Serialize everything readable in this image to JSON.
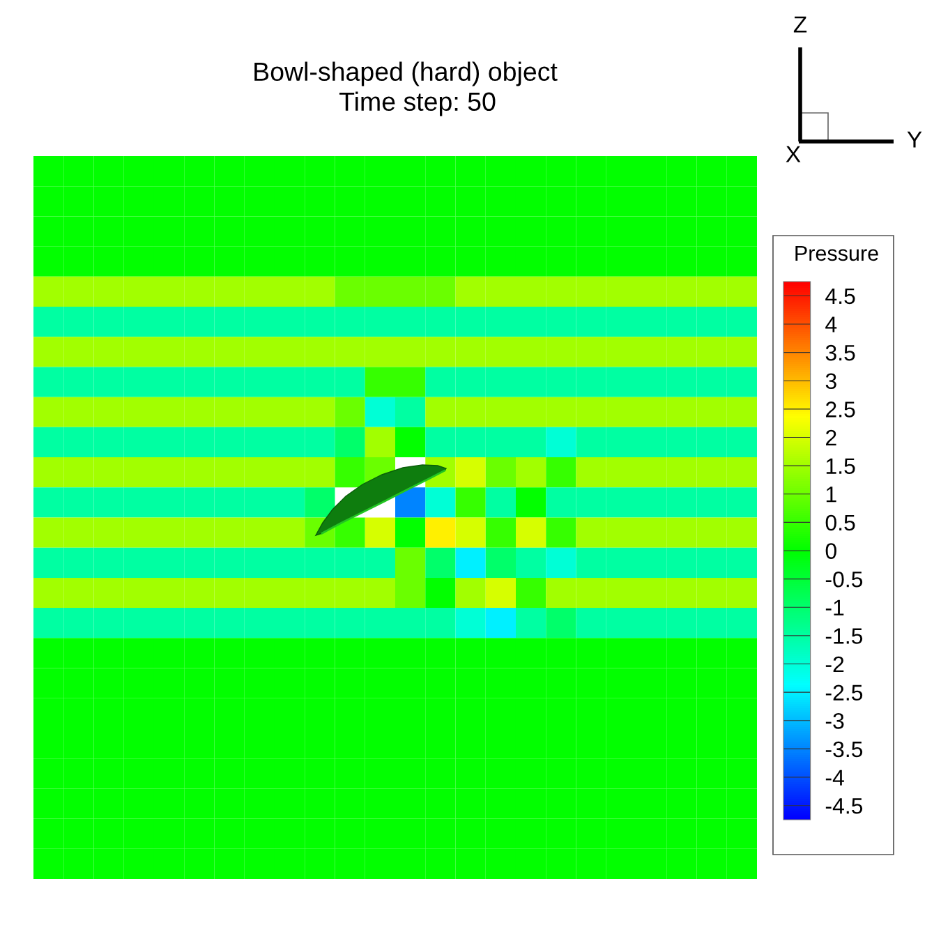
{
  "chart_data": {
    "type": "heatmap",
    "title": "Bowl-shaped (hard) object",
    "subtitle": "Time step: 50",
    "clabel": "Pressure",
    "annotations": [
      "Z",
      "Y",
      "X"
    ],
    "categories": [
      null,
      null,
      null,
      null,
      null,
      null,
      null,
      null,
      null,
      null,
      null,
      null,
      null,
      null,
      null,
      null,
      null,
      null,
      null,
      null,
      null,
      null,
      null,
      null
    ],
    "y_categories": [
      null,
      null,
      null,
      null,
      null,
      null,
      null,
      null,
      null,
      null,
      null,
      null,
      null,
      null,
      null,
      null,
      null,
      null,
      null,
      null,
      null,
      null,
      null,
      null
    ],
    "cells": [
      [
        0,
        0,
        0,
        0,
        0,
        0,
        0,
        0,
        0,
        0,
        0,
        0,
        0,
        0,
        0,
        0,
        0,
        0,
        0,
        0,
        0,
        0,
        0,
        0
      ],
      [
        0,
        0,
        0,
        0,
        0,
        0,
        0,
        0,
        0,
        0,
        0,
        0,
        0,
        0,
        0,
        0,
        0,
        0,
        0,
        0,
        0,
        0,
        0,
        0
      ],
      [
        0,
        0,
        0,
        0,
        0,
        0,
        0,
        0,
        0,
        0,
        0,
        0,
        0,
        0,
        0,
        0,
        0,
        0,
        0,
        0,
        0,
        0,
        0,
        0
      ],
      [
        0,
        0,
        0,
        0,
        0,
        0,
        0,
        0,
        0,
        0,
        0,
        0,
        0,
        0,
        0,
        0,
        0,
        0,
        0,
        0,
        0,
        0,
        0,
        0
      ],
      [
        1.5,
        1.5,
        1.5,
        1.5,
        1.5,
        1.5,
        1.5,
        1.5,
        1.5,
        1.5,
        1,
        1,
        1,
        1,
        1.5,
        1.5,
        1.5,
        1.5,
        1.5,
        1.5,
        1.5,
        1.5,
        1.5,
        1.5
      ],
      [
        -1.5,
        -1.5,
        -1.5,
        -1.5,
        -1.5,
        -1.5,
        -1.5,
        -1.5,
        -1.5,
        -1.5,
        -1.5,
        -1.5,
        -1.5,
        -1.5,
        -1.5,
        -1.5,
        -1.5,
        -1.5,
        -1.5,
        -1.5,
        -1.5,
        -1.5,
        -1.5,
        -1.5
      ],
      [
        1.5,
        1.5,
        1.5,
        1.5,
        1.5,
        1.5,
        1.5,
        1.5,
        1.5,
        1.5,
        1.5,
        1.5,
        1.5,
        1.5,
        1.5,
        1.5,
        1.5,
        1.5,
        1.5,
        1.5,
        1.5,
        1.5,
        1.5,
        1.5
      ],
      [
        -1.5,
        -1.5,
        -1.5,
        -1.5,
        -1.5,
        -1.5,
        -1.5,
        -1.5,
        -1.5,
        -1.5,
        -1.5,
        0.5,
        0.5,
        -1.5,
        -1.5,
        -1.5,
        -1.5,
        -1.5,
        -1.5,
        -1.5,
        -1.5,
        -1.5,
        -1.5,
        -1.5
      ],
      [
        1.5,
        1.5,
        1.5,
        1.5,
        1.5,
        1.5,
        1.5,
        1.5,
        1.5,
        1.5,
        1,
        -2,
        -1.5,
        1.5,
        1.5,
        1.5,
        1.5,
        1.5,
        1.5,
        1.5,
        1.5,
        1.5,
        1.5,
        1.5
      ],
      [
        -1.5,
        -1.5,
        -1.5,
        -1.5,
        -1.5,
        -1.5,
        -1.5,
        -1.5,
        -1.5,
        -1.5,
        -1,
        1.5,
        0,
        -1.5,
        -1.5,
        -1.5,
        -1.5,
        -2,
        -1.5,
        -1.5,
        -1.5,
        -1.5,
        -1.5,
        -1.5
      ],
      [
        1.5,
        1.5,
        1.5,
        1.5,
        1.5,
        1.5,
        1.5,
        1.5,
        1.5,
        1.5,
        0.5,
        1,
        null,
        1.5,
        2,
        1,
        1.5,
        0.5,
        1.5,
        1.5,
        1.5,
        1.5,
        1.5,
        1.5
      ],
      [
        -1.5,
        -1.5,
        -1.5,
        -1.5,
        -1.5,
        -1.5,
        -1.5,
        -1.5,
        -1.5,
        -1,
        null,
        null,
        -3.5,
        -2,
        0.5,
        -1.5,
        0,
        -1.5,
        -1.5,
        -1.5,
        -1.5,
        -1.5,
        -1.5,
        -1.5
      ],
      [
        1.5,
        1.5,
        1.5,
        1.5,
        1.5,
        1.5,
        1.5,
        1.5,
        1.5,
        1,
        0.5,
        2,
        0,
        2.5,
        2,
        0.5,
        2,
        0.5,
        1.5,
        1.5,
        1.5,
        1.5,
        1.5,
        1.5
      ],
      [
        -1.5,
        -1.5,
        -1.5,
        -1.5,
        -1.5,
        -1.5,
        -1.5,
        -1.5,
        -1.5,
        -1.5,
        -1.5,
        -1.5,
        1,
        -1,
        -2.5,
        -1,
        -1.5,
        -2,
        -1.5,
        -1.5,
        -1.5,
        -1.5,
        -1.5,
        -1.5
      ],
      [
        1.5,
        1.5,
        1.5,
        1.5,
        1.5,
        1.5,
        1.5,
        1.5,
        1.5,
        1.5,
        1.5,
        1.5,
        1,
        0,
        1.5,
        2,
        0.5,
        1.5,
        1.5,
        1.5,
        1.5,
        1.5,
        1.5,
        1.5
      ],
      [
        -1.5,
        -1.5,
        -1.5,
        -1.5,
        -1.5,
        -1.5,
        -1.5,
        -1.5,
        -1.5,
        -1.5,
        -1.5,
        -1.5,
        -1.5,
        -1.5,
        -2,
        -2.5,
        -1.5,
        -1,
        -1.5,
        -1.5,
        -1.5,
        -1.5,
        -1.5,
        -1.5
      ],
      [
        0,
        0,
        0,
        0,
        0,
        0,
        0,
        0,
        0,
        0,
        0,
        0,
        0,
        0,
        0,
        0,
        0,
        0,
        0,
        0,
        0,
        0,
        0,
        0
      ],
      [
        0,
        0,
        0,
        0,
        0,
        0,
        0,
        0,
        0,
        0,
        0,
        0,
        0,
        0,
        0,
        0,
        0,
        0,
        0,
        0,
        0,
        0,
        0,
        0
      ],
      [
        0,
        0,
        0,
        0,
        0,
        0,
        0,
        0,
        0,
        0,
        0,
        0,
        0,
        0,
        0,
        0,
        0,
        0,
        0,
        0,
        0,
        0,
        0,
        0
      ],
      [
        0,
        0,
        0,
        0,
        0,
        0,
        0,
        0,
        0,
        0,
        0,
        0,
        0,
        0,
        0,
        0,
        0,
        0,
        0,
        0,
        0,
        0,
        0,
        0
      ],
      [
        0,
        0,
        0,
        0,
        0,
        0,
        0,
        0,
        0,
        0,
        0,
        0,
        0,
        0,
        0,
        0,
        0,
        0,
        0,
        0,
        0,
        0,
        0,
        0
      ],
      [
        0,
        0,
        0,
        0,
        0,
        0,
        0,
        0,
        0,
        0,
        0,
        0,
        0,
        0,
        0,
        0,
        0,
        0,
        0,
        0,
        0,
        0,
        0,
        0
      ],
      [
        0,
        0,
        0,
        0,
        0,
        0,
        0,
        0,
        0,
        0,
        0,
        0,
        0,
        0,
        0,
        0,
        0,
        0,
        0,
        0,
        0,
        0,
        0,
        0
      ],
      [
        0,
        0,
        0,
        0,
        0,
        0,
        0,
        0,
        0,
        0,
        0,
        0,
        0,
        0,
        0,
        0,
        0,
        0,
        0,
        0,
        0,
        0,
        0,
        0
      ]
    ],
    "clim": [
      -4.75,
      4.75
    ],
    "cticks": [
      4.5,
      4,
      3.5,
      3,
      2.5,
      2,
      1.5,
      1,
      0.5,
      0,
      -0.5,
      -1,
      -1.5,
      -2,
      -2.5,
      -3,
      -3.5,
      -4,
      -4.5
    ],
    "tick_labels": false
  }
}
